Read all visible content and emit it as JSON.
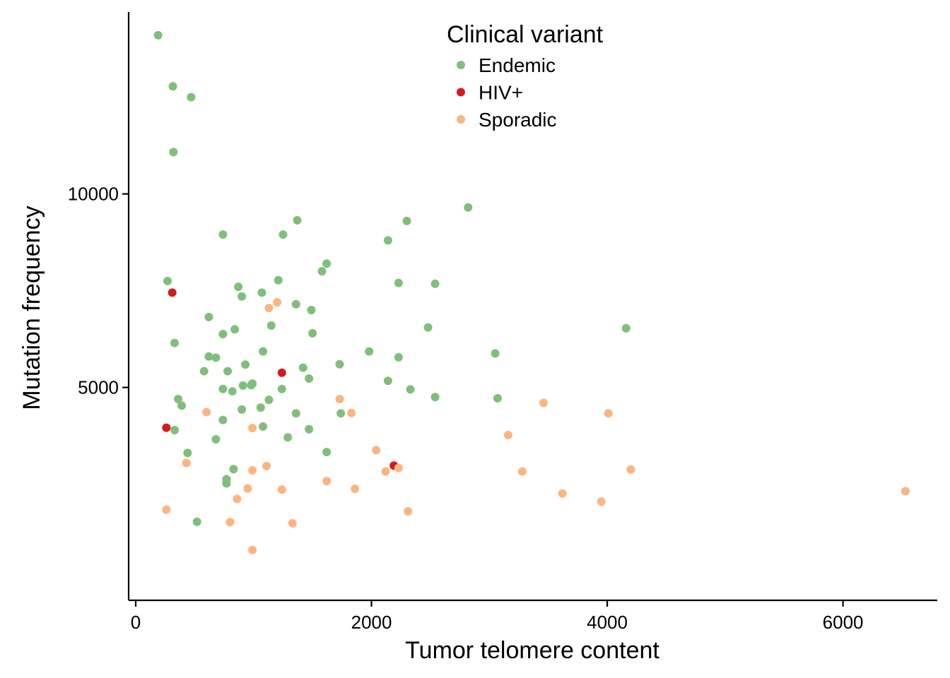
{
  "chart_data": {
    "type": "scatter",
    "title": "",
    "xlabel": "Tumor telomere content",
    "ylabel": "Mutation frequency",
    "xlim": [
      -60,
      6800
    ],
    "ylim": [
      -500,
      14700
    ],
    "xticks": [
      0,
      2000,
      4000,
      6000
    ],
    "yticks": [
      5000,
      10000
    ],
    "xtick_labels": [
      "0",
      "2000",
      "4000",
      "6000"
    ],
    "ytick_labels": [
      "5000",
      "10000"
    ],
    "grid": false,
    "legend": {
      "title": "Clinical variant",
      "placement": "top-center"
    },
    "series": [
      {
        "name": "Endemic",
        "color": "#7FBF7B",
        "points": [
          [
            190,
            14100
          ],
          [
            315,
            12780
          ],
          [
            470,
            12500
          ],
          [
            320,
            11080
          ],
          [
            270,
            7750
          ],
          [
            330,
            6150
          ],
          [
            620,
            6820
          ],
          [
            740,
            6380
          ],
          [
            840,
            6500
          ],
          [
            870,
            7600
          ],
          [
            900,
            7350
          ],
          [
            1070,
            7450
          ],
          [
            1210,
            7770
          ],
          [
            1150,
            6600
          ],
          [
            1360,
            7150
          ],
          [
            1490,
            7000
          ],
          [
            1500,
            6400
          ],
          [
            740,
            8950
          ],
          [
            1250,
            8950
          ],
          [
            1370,
            9320
          ],
          [
            1580,
            8000
          ],
          [
            1620,
            8200
          ],
          [
            2140,
            8800
          ],
          [
            2300,
            9300
          ],
          [
            2820,
            9650
          ],
          [
            2230,
            7700
          ],
          [
            2540,
            7680
          ],
          [
            2480,
            6550
          ],
          [
            4160,
            6530
          ],
          [
            620,
            5800
          ],
          [
            680,
            5770
          ],
          [
            580,
            5420
          ],
          [
            780,
            5420
          ],
          [
            930,
            5590
          ],
          [
            740,
            4960
          ],
          [
            820,
            4900
          ],
          [
            910,
            5050
          ],
          [
            980,
            5060
          ],
          [
            990,
            5100
          ],
          [
            1080,
            5930
          ],
          [
            1240,
            4960
          ],
          [
            1420,
            5510
          ],
          [
            1470,
            5230
          ],
          [
            1730,
            5600
          ],
          [
            1980,
            5930
          ],
          [
            2230,
            5780
          ],
          [
            2140,
            5170
          ],
          [
            2330,
            4950
          ],
          [
            2540,
            4750
          ],
          [
            3050,
            5880
          ],
          [
            3070,
            4720
          ],
          [
            360,
            4700
          ],
          [
            390,
            4530
          ],
          [
            900,
            4430
          ],
          [
            1060,
            4480
          ],
          [
            1130,
            4680
          ],
          [
            1360,
            4330
          ],
          [
            1740,
            4330
          ],
          [
            740,
            4160
          ],
          [
            330,
            3900
          ],
          [
            1080,
            3990
          ],
          [
            1290,
            3710
          ],
          [
            1470,
            3920
          ],
          [
            680,
            3660
          ],
          [
            440,
            3310
          ],
          [
            1620,
            3330
          ],
          [
            830,
            2890
          ],
          [
            770,
            2630
          ],
          [
            770,
            2520
          ],
          [
            520,
            1530
          ]
        ]
      },
      {
        "name": "HIV+",
        "color": "#D7191C",
        "points": [
          [
            310,
            7450
          ],
          [
            1240,
            5380
          ],
          [
            260,
            3960
          ],
          [
            2190,
            2980
          ]
        ]
      },
      {
        "name": "Sporadic",
        "color": "#FDB47F",
        "points": [
          [
            1200,
            7200
          ],
          [
            1130,
            7050
          ],
          [
            600,
            4360
          ],
          [
            990,
            3950
          ],
          [
            1730,
            4700
          ],
          [
            1830,
            4340
          ],
          [
            3460,
            4600
          ],
          [
            4010,
            4330
          ],
          [
            3160,
            3770
          ],
          [
            2040,
            3380
          ],
          [
            430,
            3050
          ],
          [
            1110,
            2970
          ],
          [
            990,
            2860
          ],
          [
            2230,
            2920
          ],
          [
            2120,
            2830
          ],
          [
            3280,
            2830
          ],
          [
            4200,
            2880
          ],
          [
            1620,
            2580
          ],
          [
            950,
            2390
          ],
          [
            1240,
            2360
          ],
          [
            1860,
            2380
          ],
          [
            6530,
            2320
          ],
          [
            3620,
            2260
          ],
          [
            860,
            2120
          ],
          [
            3950,
            2050
          ],
          [
            260,
            1840
          ],
          [
            2310,
            1800
          ],
          [
            800,
            1520
          ],
          [
            1330,
            1490
          ],
          [
            990,
            800
          ]
        ]
      }
    ]
  }
}
